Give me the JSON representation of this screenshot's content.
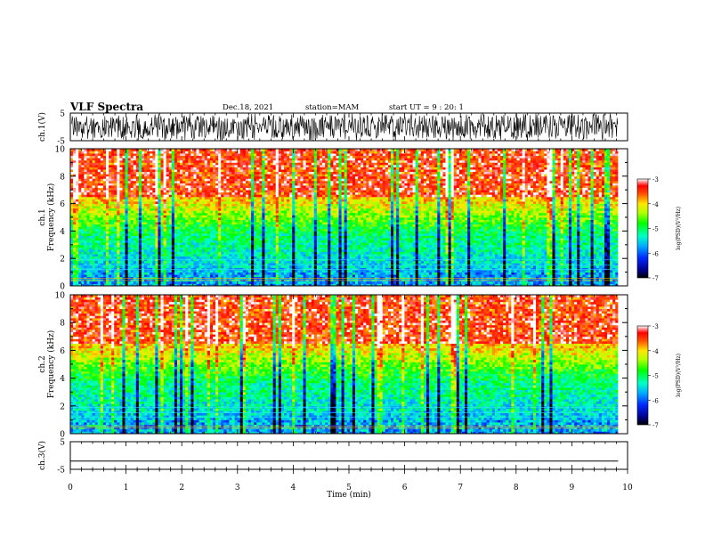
{
  "header": {
    "title": "VLF Spectra",
    "date": "Dec.18, 2021",
    "station": "station=MAM",
    "start": "start UT =  9 : 20: 1"
  },
  "chart_data": [
    {
      "type": "line",
      "ylabel": "ch.1(V)",
      "ylim": [
        -5,
        5
      ],
      "yticks": [
        "5",
        "-5"
      ],
      "description_trace": "dense noise waveform"
    },
    {
      "type": "heatmap",
      "ylabel_top": "ch.1",
      "ylabel": "Frequency (kHz)",
      "ylim": [
        0,
        10
      ],
      "yticks": [
        "0",
        "2",
        "4",
        "6",
        "8",
        "10"
      ],
      "colorbar": {
        "label": "log(PSD)(V²/Hz)",
        "ticks": [
          "-3",
          "-4",
          "-5",
          "-6",
          "-7"
        ],
        "range": [
          -7,
          -3
        ]
      }
    },
    {
      "type": "heatmap",
      "ylabel_top": "ch.2",
      "ylabel": "Frequency (kHz)",
      "ylim": [
        0,
        10
      ],
      "yticks": [
        "0",
        "2",
        "4",
        "6",
        "8",
        "10"
      ],
      "colorbar": {
        "label": "log(PSD)(V²/Hz)",
        "ticks": [
          "-3",
          "-4",
          "-5",
          "-6",
          "-7"
        ],
        "range": [
          -7,
          -3
        ]
      }
    },
    {
      "type": "line",
      "ylabel": "ch.3(V)",
      "ylim": [
        -5,
        5
      ],
      "yticks": [
        "5",
        "-5"
      ],
      "values_constant": -2
    }
  ],
  "xaxis": {
    "label": "Time (min)",
    "ticks": [
      "0",
      "1",
      "2",
      "3",
      "4",
      "5",
      "6",
      "7",
      "8",
      "9",
      "10"
    ],
    "range": [
      0,
      10
    ],
    "data_end": 9.83
  }
}
